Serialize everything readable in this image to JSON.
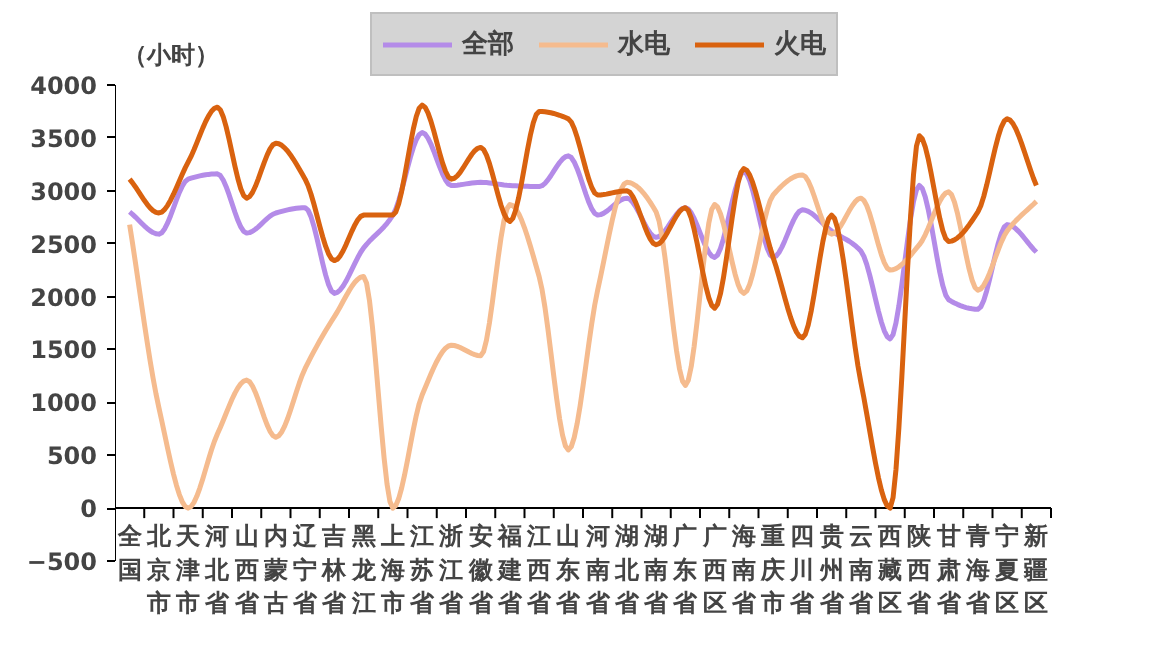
{
  "chart_data": {
    "type": "line",
    "ylabel": "（小时）",
    "categories": [
      "全国",
      "北京市",
      "天津市",
      "河北省",
      "山西省",
      "内蒙古",
      "辽宁省",
      "吉林省",
      "黑龙江",
      "上海市",
      "江苏省",
      "浙江省",
      "安徽省",
      "福建省",
      "江西省",
      "山东省",
      "河南省",
      "湖北省",
      "湖南省",
      "广东省",
      "广西区",
      "海南省",
      "重庆市",
      "四川省",
      "贵州省",
      "云南省",
      "西藏区",
      "陕西省",
      "甘肃省",
      "青海省",
      "宁夏区",
      "新疆区"
    ],
    "series": [
      {
        "name": "全部",
        "color": "#b48be8",
        "values": [
          2800,
          2590,
          3110,
          3160,
          2600,
          2790,
          2840,
          2030,
          2460,
          2770,
          3550,
          3050,
          3080,
          3050,
          3040,
          3330,
          2770,
          2930,
          2560,
          2840,
          2370,
          3180,
          2370,
          2820,
          2620,
          2430,
          1600,
          3050,
          1970,
          1880,
          2680,
          2420
        ]
      },
      {
        "name": "水电",
        "color": "#f5bb8e",
        "values": [
          2680,
          950,
          0,
          700,
          1210,
          670,
          1320,
          1810,
          2190,
          0,
          1070,
          1540,
          1440,
          2870,
          2190,
          550,
          2060,
          3080,
          2800,
          1160,
          2870,
          2030,
          2960,
          3150,
          2590,
          2930,
          2250,
          2490,
          2990,
          2060,
          2620,
          2900
        ]
      },
      {
        "name": "火电",
        "color": "#d9620f",
        "values": [
          3110,
          2790,
          3270,
          3790,
          2930,
          3450,
          3110,
          2340,
          2770,
          2770,
          3810,
          3110,
          3410,
          2710,
          3750,
          3680,
          2960,
          3000,
          2490,
          2840,
          1890,
          3210,
          2370,
          1610,
          2770,
          1190,
          0,
          3520,
          2520,
          2800,
          3680,
          3050
        ]
      }
    ],
    "ylim": [
      -500,
      4000
    ],
    "yticks": [
      -500,
      0,
      500,
      1000,
      1500,
      2000,
      2500,
      3000,
      3500,
      4000
    ],
    "grid": false,
    "legend": "top",
    "line_style": "solid"
  }
}
